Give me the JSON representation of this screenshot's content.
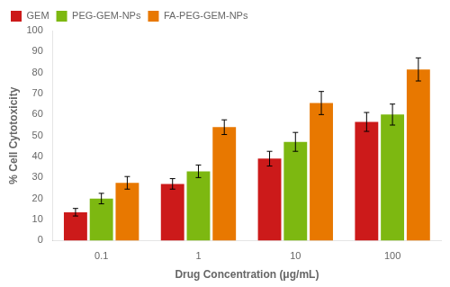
{
  "chart_data": {
    "type": "bar",
    "xlabel": "Drug Concentration (μg/mL)",
    "ylabel": "% Cell Cytotoxicity",
    "categories": [
      "0.1",
      "1",
      "10",
      "100"
    ],
    "series": [
      {
        "name": "GEM",
        "color": "#cc1a1a",
        "values": [
          13.5,
          27.0,
          39.0,
          56.5
        ],
        "errors": [
          1.8,
          2.5,
          3.5,
          4.5
        ]
      },
      {
        "name": "PEG-GEM-NPs",
        "color": "#7db811",
        "values": [
          20.0,
          33.0,
          47.0,
          60.0
        ],
        "errors": [
          2.5,
          3.0,
          4.5,
          5.0
        ]
      },
      {
        "name": "FA-PEG-GEM-NPs",
        "color": "#e87800",
        "values": [
          27.5,
          54.0,
          65.5,
          81.5
        ],
        "errors": [
          3.0,
          3.5,
          5.5,
          5.5
        ]
      }
    ],
    "ylim": [
      0,
      100
    ],
    "yticks": [
      0,
      10,
      20,
      30,
      40,
      50,
      60,
      70,
      80,
      90,
      100
    ],
    "grid": false,
    "legend": "upper left"
  }
}
